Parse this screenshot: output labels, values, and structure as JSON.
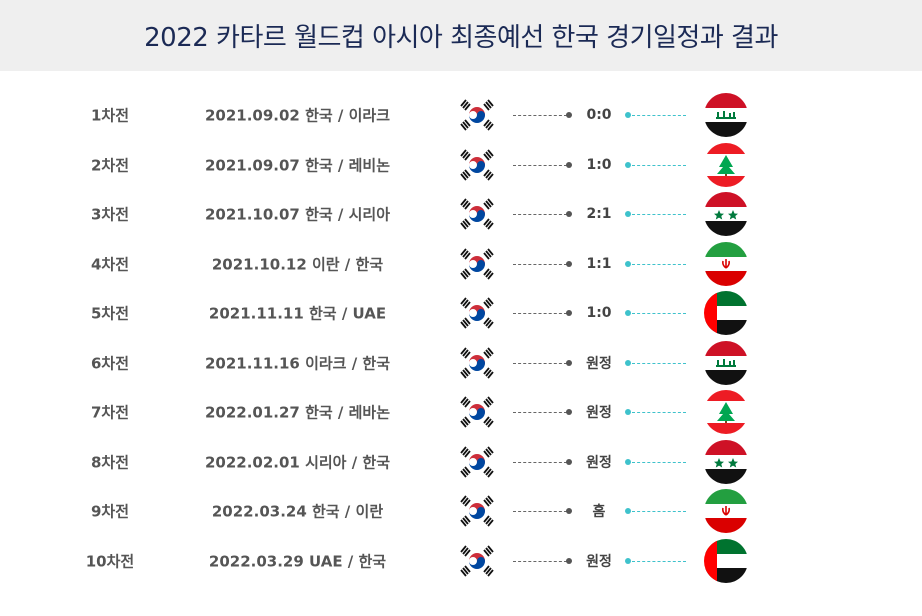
{
  "title": "2022 카타르 월드컵 아시아 최종예선 한국 경기일정과 결과",
  "matches": [
    {
      "round": "1차전",
      "match": "2021.09.02 한국 / 이라크",
      "result": "0:0",
      "opponent_flag": "iraq-flag-icon"
    },
    {
      "round": "2차전",
      "match": "2021.09.07 한국 / 레비논",
      "result": "1:0",
      "opponent_flag": "lebanon-flag-icon"
    },
    {
      "round": "3차전",
      "match": "2021.10.07 한국 / 시리아",
      "result": "2:1",
      "opponent_flag": "syria-flag-icon"
    },
    {
      "round": "4차전",
      "match": "2021.10.12 이란 / 한국",
      "result": "1:1",
      "opponent_flag": "iran-flag-icon"
    },
    {
      "round": "5차전",
      "match": "2021.11.11 한국 / UAE",
      "result": "1:0",
      "opponent_flag": "uae-flag-icon"
    },
    {
      "round": "6차전",
      "match": "2021.11.16 이라크 /  한국",
      "result": "원정",
      "opponent_flag": "iraq-flag-icon"
    },
    {
      "round": "7차전",
      "match": "2022.01.27 한국 / 레바논",
      "result": "원정",
      "opponent_flag": "lebanon-flag-icon"
    },
    {
      "round": "8차전",
      "match": "2022.02.01 시리아 / 한국",
      "result": "원정",
      "opponent_flag": "syria-flag-icon"
    },
    {
      "round": "9차전",
      "match": "2022.03.24 한국 / 이란",
      "result": "홈",
      "opponent_flag": "iran-flag-icon"
    },
    {
      "round": "10차전",
      "match": "2022.03.29 UAE / 한국",
      "result": "원정",
      "opponent_flag": "uae-flag-icon"
    }
  ],
  "colors": {
    "title": "#1b2a55",
    "header_bg": "#efefef",
    "text": "#555555",
    "left_connector": "#555555",
    "right_connector": "#3ec2cc"
  }
}
